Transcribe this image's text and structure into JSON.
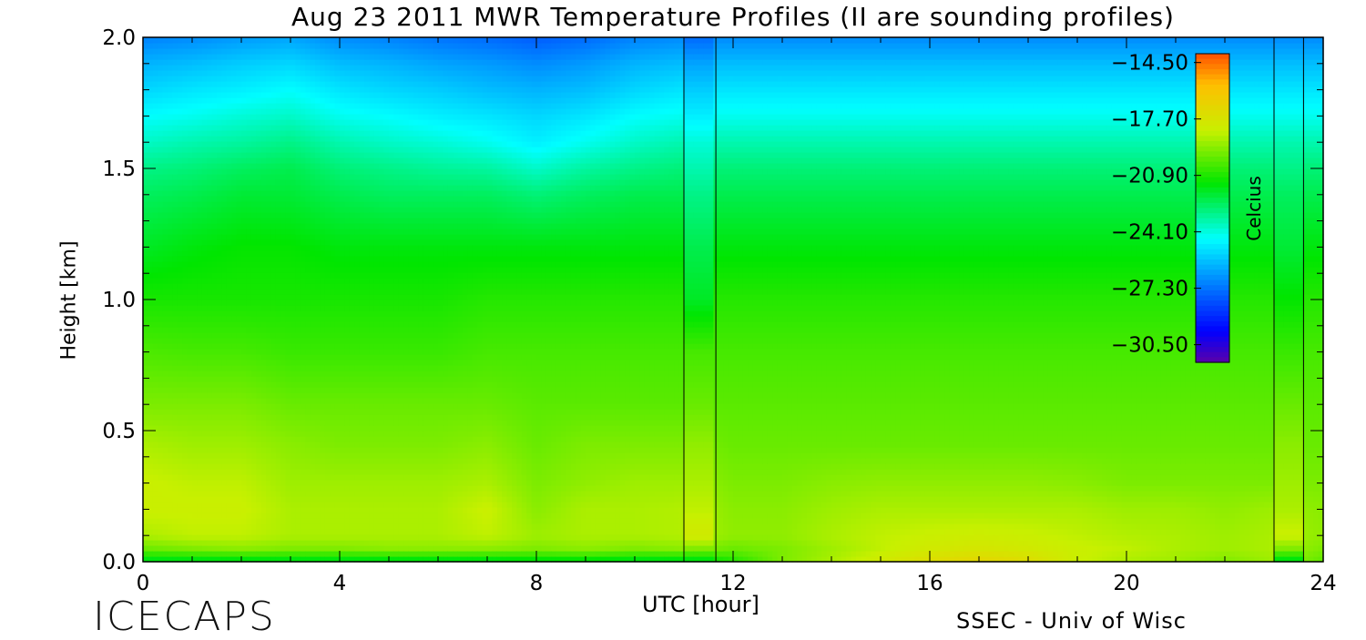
{
  "chart_data": {
    "type": "heatmap",
    "title": "Aug 23 2011 MWR Temperature Profiles (II are sounding profiles)",
    "xlabel": "UTC [hour]",
    "ylabel": "Height [km]",
    "xlim": [
      0,
      24
    ],
    "ylim": [
      0,
      2.0
    ],
    "x_ticks": [
      0,
      4,
      8,
      12,
      16,
      20,
      24
    ],
    "y_ticks": [
      "0.0",
      "0.5",
      "1.0",
      "1.5",
      "2.0"
    ],
    "colorbar": {
      "label": "Celcius",
      "range": [
        -31.5,
        -14.0
      ],
      "tick_labels": [
        "-14.50",
        "-17.70",
        "-20.90",
        "-24.10",
        "-27.30",
        "-30.50"
      ]
    },
    "sounding_profiles": [
      {
        "start": 11.0,
        "end": 11.65
      },
      {
        "start": 23.0,
        "end": 23.6
      }
    ],
    "grid_hours": [
      0,
      1,
      2,
      3,
      4,
      5,
      6,
      7,
      8,
      9,
      10,
      11,
      12,
      13,
      14,
      15,
      16,
      17,
      18,
      19,
      20,
      21,
      22,
      23,
      24
    ],
    "grid_heights_km": [
      0.0,
      0.05,
      0.1,
      0.2,
      0.3,
      0.45,
      0.6,
      0.8,
      1.0,
      1.2,
      1.4,
      1.5,
      1.6,
      1.7,
      1.8,
      1.9,
      2.0
    ],
    "temperature_c": [
      [
        -22.0,
        -22.0,
        -22.0,
        -22.0,
        -22.0,
        -22.0,
        -22.0,
        -22.0,
        -21.8,
        -21.8,
        -22.0,
        -22.0,
        -21.0,
        -19.5,
        -18.8,
        -18.0,
        -17.3,
        -17.0,
        -17.3,
        -18.3,
        -18.8,
        -19.0,
        -19.5,
        -19.0,
        -20.0
      ],
      [
        -19.8,
        -19.5,
        -19.3,
        -19.5,
        -19.5,
        -19.3,
        -19.3,
        -19.3,
        -19.5,
        -19.3,
        -19.5,
        -19.3,
        -19.8,
        -19.5,
        -19.0,
        -18.5,
        -18.0,
        -17.8,
        -18.0,
        -18.3,
        -18.5,
        -18.8,
        -19.0,
        -18.8,
        -19.5
      ],
      [
        -18.8,
        -18.5,
        -18.5,
        -18.8,
        -18.8,
        -18.8,
        -18.8,
        -18.5,
        -19.0,
        -18.8,
        -18.8,
        -18.7,
        -19.2,
        -19.2,
        -18.8,
        -18.5,
        -18.3,
        -18.2,
        -18.3,
        -18.5,
        -18.7,
        -18.8,
        -19.0,
        -18.8,
        -19.2
      ],
      [
        -18.3,
        -18.3,
        -18.3,
        -18.8,
        -18.8,
        -18.8,
        -18.8,
        -18.3,
        -19.3,
        -18.8,
        -18.8,
        -18.7,
        -19.3,
        -19.3,
        -19.0,
        -18.8,
        -18.8,
        -18.8,
        -18.8,
        -18.8,
        -19.0,
        -19.0,
        -19.2,
        -19.0,
        -19.3
      ],
      [
        -18.3,
        -18.5,
        -18.5,
        -19.0,
        -19.0,
        -19.0,
        -19.0,
        -18.8,
        -19.5,
        -19.2,
        -19.0,
        -19.0,
        -19.5,
        -19.5,
        -19.3,
        -19.2,
        -19.2,
        -19.2,
        -19.2,
        -19.3,
        -19.5,
        -19.5,
        -19.5,
        -19.5,
        -19.5
      ],
      [
        -18.8,
        -19.0,
        -19.0,
        -19.3,
        -19.5,
        -19.5,
        -19.5,
        -19.3,
        -19.8,
        -19.5,
        -19.5,
        -19.5,
        -19.8,
        -19.8,
        -19.8,
        -19.8,
        -19.8,
        -19.8,
        -19.8,
        -19.8,
        -19.8,
        -19.8,
        -19.8,
        -19.8,
        -19.8
      ],
      [
        -19.5,
        -19.5,
        -19.5,
        -19.8,
        -19.8,
        -19.8,
        -19.8,
        -19.8,
        -20.0,
        -20.0,
        -20.0,
        -20.0,
        -20.0,
        -20.0,
        -20.0,
        -20.0,
        -20.0,
        -20.0,
        -20.0,
        -20.0,
        -20.0,
        -20.0,
        -20.0,
        -20.0,
        -20.0
      ],
      [
        -20.2,
        -20.3,
        -20.3,
        -20.5,
        -20.5,
        -20.5,
        -20.5,
        -20.3,
        -20.3,
        -20.3,
        -20.3,
        -20.3,
        -20.3,
        -20.3,
        -20.3,
        -20.3,
        -20.3,
        -20.3,
        -20.3,
        -20.3,
        -20.3,
        -20.3,
        -20.3,
        -20.3,
        -20.3
      ],
      [
        -21.0,
        -21.0,
        -21.0,
        -21.0,
        -21.0,
        -21.0,
        -21.0,
        -20.8,
        -20.8,
        -20.8,
        -20.8,
        -20.8,
        -20.8,
        -20.8,
        -20.8,
        -20.8,
        -20.8,
        -20.8,
        -20.8,
        -20.8,
        -20.8,
        -20.8,
        -20.8,
        -20.8,
        -20.8
      ],
      [
        -21.8,
        -21.5,
        -21.3,
        -21.3,
        -21.5,
        -21.5,
        -21.5,
        -21.5,
        -21.5,
        -21.5,
        -21.5,
        -21.5,
        -21.5,
        -21.5,
        -21.5,
        -21.5,
        -21.5,
        -21.5,
        -21.5,
        -21.5,
        -21.5,
        -21.5,
        -21.5,
        -21.5,
        -21.5
      ],
      [
        -22.5,
        -22.3,
        -22.0,
        -22.0,
        -22.3,
        -22.5,
        -22.5,
        -22.5,
        -22.8,
        -22.5,
        -22.3,
        -22.3,
        -22.3,
        -22.3,
        -22.3,
        -22.3,
        -22.3,
        -22.3,
        -22.3,
        -22.3,
        -22.3,
        -22.3,
        -22.3,
        -22.3,
        -22.3
      ],
      [
        -23.0,
        -22.8,
        -22.5,
        -22.3,
        -22.8,
        -23.0,
        -23.2,
        -23.3,
        -23.8,
        -23.3,
        -23.0,
        -22.8,
        -22.8,
        -22.8,
        -22.8,
        -22.8,
        -22.8,
        -22.8,
        -22.8,
        -22.8,
        -22.8,
        -22.8,
        -22.8,
        -22.8,
        -22.8
      ],
      [
        -23.8,
        -23.5,
        -23.3,
        -23.0,
        -23.5,
        -23.8,
        -24.0,
        -24.3,
        -24.8,
        -24.3,
        -23.8,
        -23.5,
        -23.5,
        -23.5,
        -23.5,
        -23.5,
        -23.5,
        -23.5,
        -23.5,
        -23.5,
        -23.5,
        -23.5,
        -23.5,
        -23.5,
        -23.5
      ],
      [
        -24.5,
        -24.3,
        -24.0,
        -23.8,
        -24.3,
        -24.5,
        -24.8,
        -25.0,
        -25.3,
        -25.0,
        -24.5,
        -24.3,
        -24.3,
        -24.3,
        -24.3,
        -24.3,
        -24.3,
        -24.3,
        -24.3,
        -24.3,
        -24.3,
        -24.3,
        -24.3,
        -24.3,
        -24.3
      ],
      [
        -25.3,
        -25.0,
        -24.8,
        -24.5,
        -25.0,
        -25.3,
        -25.5,
        -25.8,
        -26.0,
        -25.8,
        -25.3,
        -25.0,
        -25.0,
        -25.0,
        -25.0,
        -25.0,
        -25.0,
        -25.0,
        -25.0,
        -25.0,
        -25.0,
        -25.0,
        -25.0,
        -25.0,
        -25.0
      ],
      [
        -26.0,
        -25.8,
        -25.5,
        -25.3,
        -25.8,
        -26.0,
        -26.3,
        -26.5,
        -26.8,
        -26.5,
        -26.0,
        -25.8,
        -25.8,
        -25.8,
        -25.8,
        -25.8,
        -25.8,
        -25.8,
        -25.8,
        -25.8,
        -25.8,
        -25.8,
        -25.8,
        -25.8,
        -25.8
      ],
      [
        -27.0,
        -26.8,
        -26.5,
        -26.3,
        -26.8,
        -27.0,
        -27.3,
        -27.5,
        -27.8,
        -27.5,
        -27.0,
        -26.8,
        -26.8,
        -26.8,
        -26.8,
        -26.8,
        -26.8,
        -26.8,
        -26.8,
        -26.8,
        -26.8,
        -26.8,
        -26.8,
        -26.8,
        -26.8
      ]
    ],
    "sounding_temperature_c": [
      [
        -22.0,
        -22.0
      ],
      [
        -19.5,
        -19.5
      ],
      [
        -18.0,
        -18.3
      ],
      [
        -18.5,
        -18.8
      ],
      [
        -18.8,
        -19.0
      ],
      [
        -19.2,
        -19.3
      ],
      [
        -19.8,
        -19.8
      ],
      [
        -20.3,
        -20.5
      ],
      [
        -21.8,
        -21.3
      ],
      [
        -22.3,
        -22.0
      ],
      [
        -23.0,
        -22.5
      ],
      [
        -23.5,
        -23.0
      ],
      [
        -24.0,
        -23.5
      ],
      [
        -24.8,
        -24.3
      ],
      [
        -25.5,
        -25.0
      ],
      [
        -26.3,
        -25.8
      ],
      [
        -27.5,
        -26.8
      ]
    ]
  },
  "footer": {
    "logo": "ICECAPS",
    "credit": "SSEC - Univ of Wisc"
  }
}
